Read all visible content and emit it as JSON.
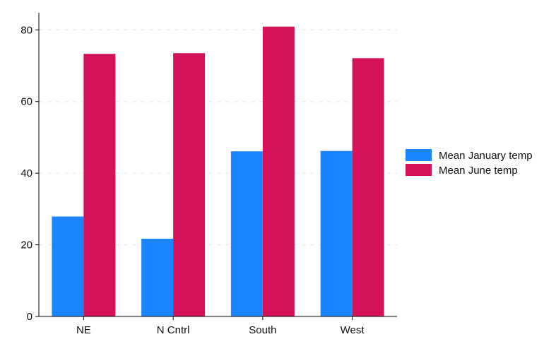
{
  "chart_data": {
    "type": "bar",
    "categories": [
      "NE",
      "N Cntrl",
      "South",
      "West"
    ],
    "series": [
      {
        "name": "Mean January temp",
        "color": "#1a85ff",
        "values": [
          27.9,
          21.7,
          46.1,
          46.2
        ]
      },
      {
        "name": "Mean June temp",
        "color": "#d41159",
        "values": [
          73.3,
          73.5,
          80.9,
          72.1
        ]
      }
    ],
    "title": "",
    "xlabel": "",
    "ylabel": "",
    "ylim": [
      0,
      84
    ],
    "yticks": [
      0,
      20,
      40,
      60,
      80
    ],
    "grid": true,
    "legend_position": "right"
  }
}
